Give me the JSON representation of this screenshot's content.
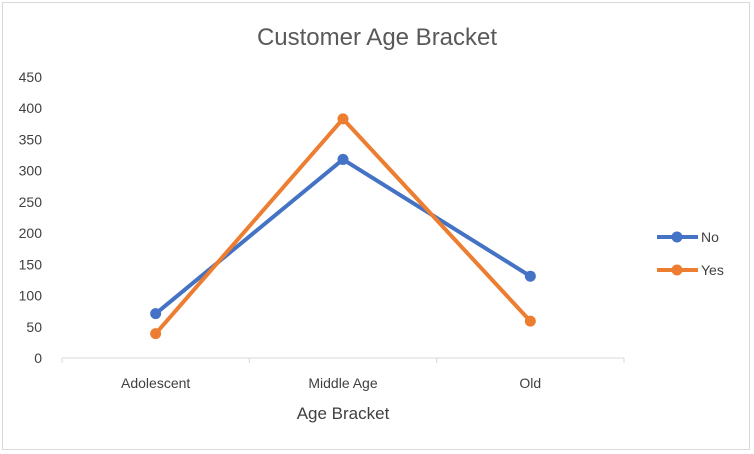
{
  "chart_data": {
    "type": "line",
    "title": "Customer Age Bracket",
    "xlabel": "Age Bracket",
    "ylabel": "",
    "categories": [
      "Adolescent",
      "Middle Age",
      "Old"
    ],
    "ylim": [
      0,
      450
    ],
    "yticks": [
      0,
      50,
      100,
      150,
      200,
      250,
      300,
      350,
      400,
      450
    ],
    "grid": false,
    "legend_position": "right",
    "series": [
      {
        "name": "No",
        "color": "#4472C4",
        "values": [
          71,
          318,
          131
        ]
      },
      {
        "name": "Yes",
        "color": "#ED7D31",
        "values": [
          39,
          383,
          59
        ]
      }
    ]
  }
}
